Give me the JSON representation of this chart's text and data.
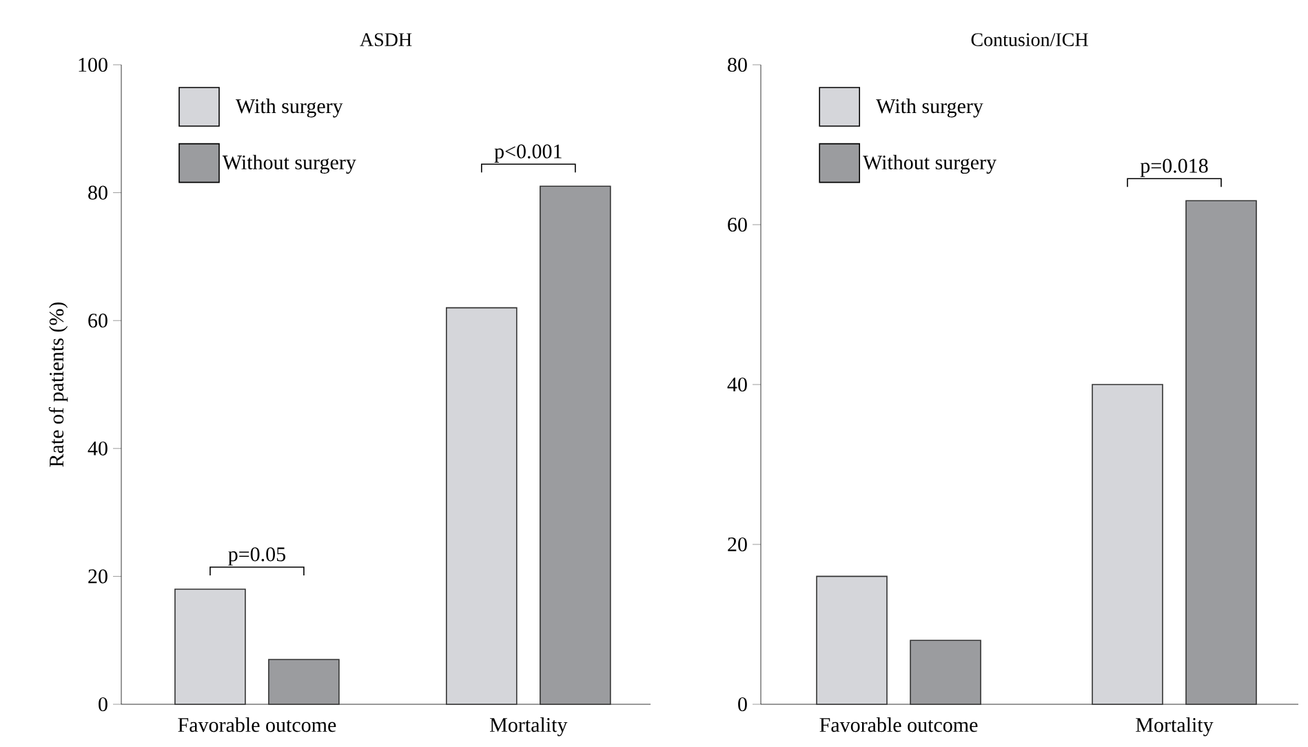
{
  "chart_data": [
    {
      "type": "bar",
      "title": "ASDH",
      "ylabel": "Rate of patients (%)",
      "categories": [
        "Favorable outcome",
        "Mortality"
      ],
      "series": [
        {
          "name": "With surgery",
          "color": "#d5d6da",
          "values": [
            18,
            62
          ]
        },
        {
          "name": "Without surgery",
          "color": "#9b9c9f",
          "values": [
            7,
            81
          ]
        }
      ],
      "ylim": [
        0,
        100
      ],
      "yticks": [
        0,
        20,
        40,
        60,
        80,
        100
      ],
      "legend": "top left",
      "annotations": [
        "p=0.05",
        "p<0.001"
      ]
    },
    {
      "type": "bar",
      "title": "Contusion/ICH",
      "categories": [
        "Favorable outcome",
        "Mortality"
      ],
      "series": [
        {
          "name": "With surgery",
          "color": "#d5d6da",
          "values": [
            16,
            40
          ]
        },
        {
          "name": "Without surgery",
          "color": "#9b9c9f",
          "values": [
            8,
            63
          ]
        }
      ],
      "ylim": [
        0,
        80
      ],
      "yticks": [
        0,
        20,
        40,
        60,
        80
      ],
      "legend": "top left",
      "annotations": [
        "p=0.018"
      ]
    }
  ]
}
